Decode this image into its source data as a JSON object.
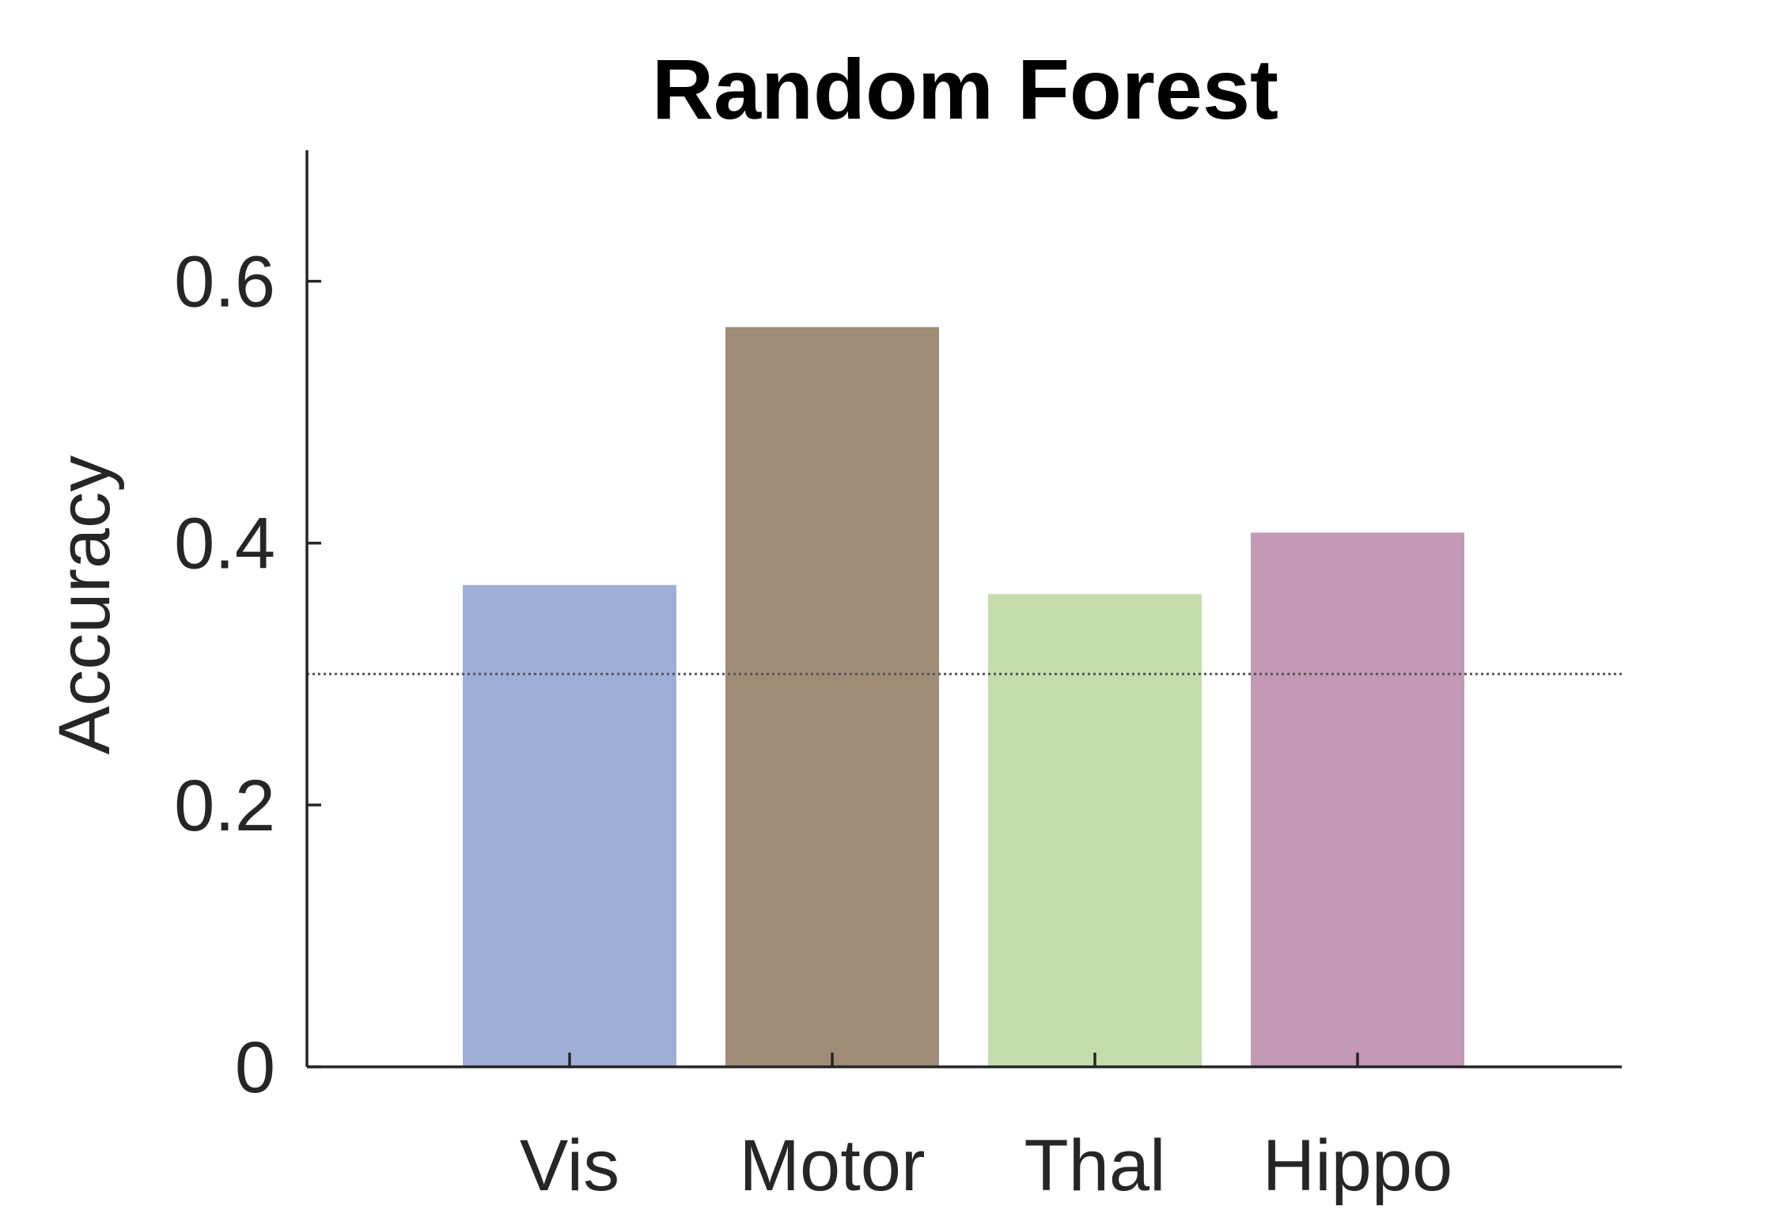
{
  "chart_data": {
    "type": "bar",
    "title": "Random Forest",
    "xlabel": "",
    "ylabel": "Accuracy",
    "categories": [
      "Vis",
      "Motor",
      "Thal",
      "Hippo"
    ],
    "values": [
      0.368,
      0.565,
      0.361,
      0.408
    ],
    "colors": [
      "#9eaed6",
      "#a08c76",
      "#c3ddac",
      "#c399b5"
    ],
    "ylim": [
      0,
      0.7
    ],
    "yticks": [
      0,
      0.2,
      0.4,
      0.6
    ],
    "ytick_labels": [
      "0",
      "0.2",
      "0.4",
      "0.6"
    ],
    "reference_line": 0.3,
    "grid": false,
    "legend": "none"
  }
}
